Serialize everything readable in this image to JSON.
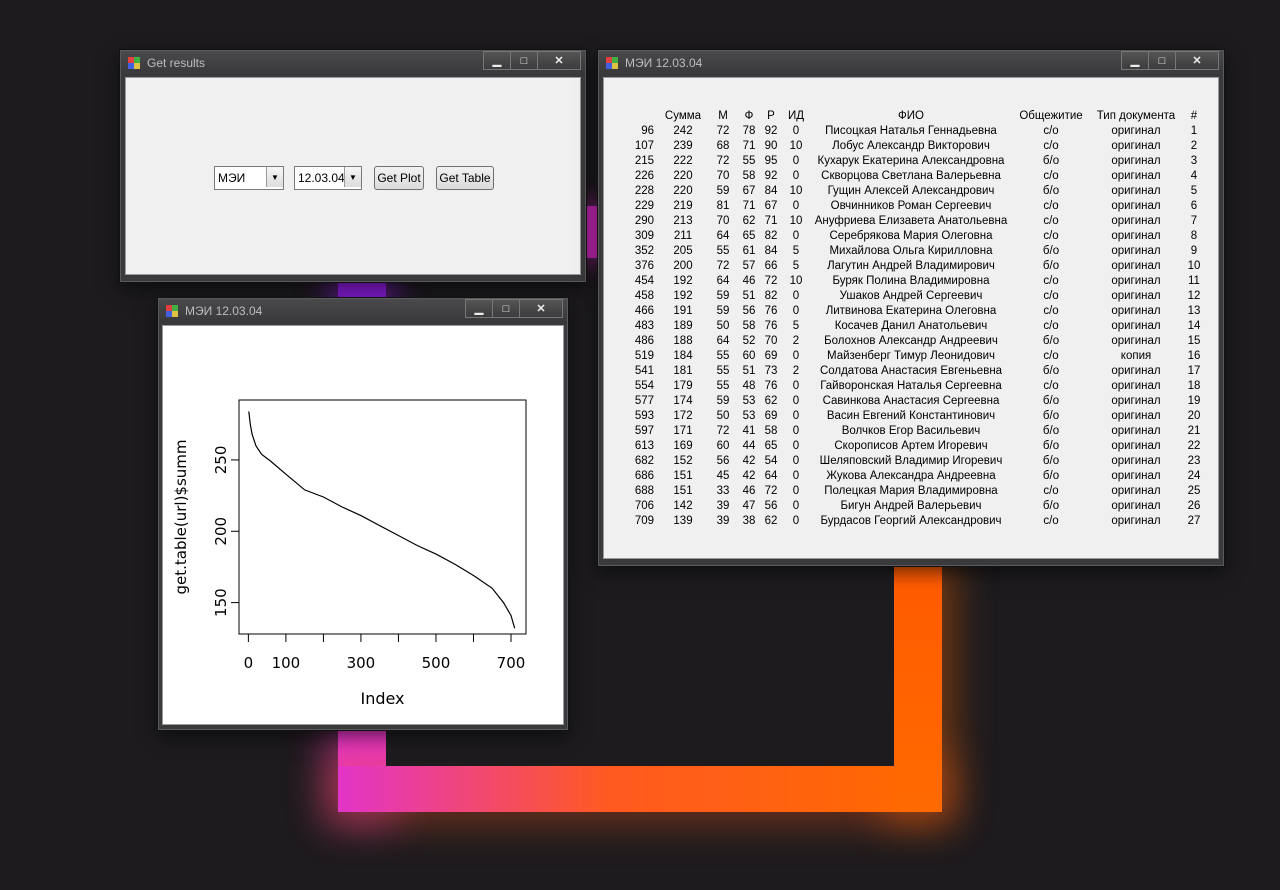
{
  "colors": {
    "desktop_bg": "#1d1b1e",
    "glow_pink": "#e234c8",
    "glow_purple": "#8a1ddb",
    "glow_orange": "#ff6a00"
  },
  "get_results_window": {
    "title": "Get results",
    "university_value": "МЭИ",
    "program_value": "12.03.04",
    "get_plot_label": "Get Plot",
    "get_table_label": "Get Table"
  },
  "plot_window": {
    "title": "МЭИ 12.03.04"
  },
  "table_window": {
    "title": "МЭИ 12.03.04",
    "columns": [
      "",
      "Сумма",
      "М",
      "Ф",
      "Р",
      "ИД",
      "ФИО",
      "Общежитие",
      "Тип документа",
      "#"
    ],
    "rows": [
      [
        "96",
        "242",
        "72",
        "78",
        "92",
        "0",
        "Писоцкая Наталья Геннадьевна",
        "с/о",
        "оригинал",
        "1"
      ],
      [
        "107",
        "239",
        "68",
        "71",
        "90",
        "10",
        "Лобус Александр Викторович",
        "с/о",
        "оригинал",
        "2"
      ],
      [
        "215",
        "222",
        "72",
        "55",
        "95",
        "0",
        "Кухарук Екатерина Александровна",
        "б/о",
        "оригинал",
        "3"
      ],
      [
        "226",
        "220",
        "70",
        "58",
        "92",
        "0",
        "Скворцова Светлана Валерьевна",
        "с/о",
        "оригинал",
        "4"
      ],
      [
        "228",
        "220",
        "59",
        "67",
        "84",
        "10",
        "Гущин Алексей Александрович",
        "б/о",
        "оригинал",
        "5"
      ],
      [
        "229",
        "219",
        "81",
        "71",
        "67",
        "0",
        "Овчинников Роман Сергеевич",
        "с/о",
        "оригинал",
        "6"
      ],
      [
        "290",
        "213",
        "70",
        "62",
        "71",
        "10",
        "Ануфриева Елизавета Анатольевна",
        "с/о",
        "оригинал",
        "7"
      ],
      [
        "309",
        "211",
        "64",
        "65",
        "82",
        "0",
        "Серебрякова Мария Олеговна",
        "с/о",
        "оригинал",
        "8"
      ],
      [
        "352",
        "205",
        "55",
        "61",
        "84",
        "5",
        "Михайлова Ольга Кирилловна",
        "б/о",
        "оригинал",
        "9"
      ],
      [
        "376",
        "200",
        "72",
        "57",
        "66",
        "5",
        "Лагутин Андрей Владимирович",
        "б/о",
        "оригинал",
        "10"
      ],
      [
        "454",
        "192",
        "64",
        "46",
        "72",
        "10",
        "Буряк Полина Владимировна",
        "с/о",
        "оригинал",
        "11"
      ],
      [
        "458",
        "192",
        "59",
        "51",
        "82",
        "0",
        "Ушаков Андрей Сергеевич",
        "с/о",
        "оригинал",
        "12"
      ],
      [
        "466",
        "191",
        "59",
        "56",
        "76",
        "0",
        "Литвинова Екатерина Олеговна",
        "с/о",
        "оригинал",
        "13"
      ],
      [
        "483",
        "189",
        "50",
        "58",
        "76",
        "5",
        "Косачев Данил Анатольевич",
        "с/о",
        "оригинал",
        "14"
      ],
      [
        "486",
        "188",
        "64",
        "52",
        "70",
        "2",
        "Болохнов Александр Андреевич",
        "б/о",
        "оригинал",
        "15"
      ],
      [
        "519",
        "184",
        "55",
        "60",
        "69",
        "0",
        "Майзенберг Тимур Леонидович",
        "с/о",
        "копия",
        "16"
      ],
      [
        "541",
        "181",
        "55",
        "51",
        "73",
        "2",
        "Солдатова Анастасия Евгеньевна",
        "б/о",
        "оригинал",
        "17"
      ],
      [
        "554",
        "179",
        "55",
        "48",
        "76",
        "0",
        "Гайворонская Наталья Сергеевна",
        "с/о",
        "оригинал",
        "18"
      ],
      [
        "577",
        "174",
        "59",
        "53",
        "62",
        "0",
        "Савинкова Анастасия Сергеевна",
        "б/о",
        "оригинал",
        "19"
      ],
      [
        "593",
        "172",
        "50",
        "53",
        "69",
        "0",
        "Васин Евгений Константинович",
        "б/о",
        "оригинал",
        "20"
      ],
      [
        "597",
        "171",
        "72",
        "41",
        "58",
        "0",
        "Волчков Егор Васильевич",
        "б/о",
        "оригинал",
        "21"
      ],
      [
        "613",
        "169",
        "60",
        "44",
        "65",
        "0",
        "Скорописов Артем Игоревич",
        "б/о",
        "оригинал",
        "22"
      ],
      [
        "682",
        "152",
        "56",
        "42",
        "54",
        "0",
        "Шеляповский Владимир Игоревич",
        "б/о",
        "оригинал",
        "23"
      ],
      [
        "686",
        "151",
        "45",
        "42",
        "64",
        "0",
        "Жукова Александра Андреевна",
        "б/о",
        "оригинал",
        "24"
      ],
      [
        "688",
        "151",
        "33",
        "46",
        "72",
        "0",
        "Полецкая Мария Владимировна",
        "с/о",
        "оригинал",
        "25"
      ],
      [
        "706",
        "142",
        "39",
        "47",
        "56",
        "0",
        "Бигун Андрей Валерьевич",
        "б/о",
        "оригинал",
        "26"
      ],
      [
        "709",
        "139",
        "39",
        "38",
        "62",
        "0",
        "Бурдасов Георгий Александрович",
        "с/о",
        "оригинал",
        "27"
      ]
    ]
  },
  "chart_data": {
    "type": "line",
    "xlabel": "Index",
    "ylabel": "get.table(url)$summ",
    "x_ticks": [
      0,
      100,
      300,
      500,
      700
    ],
    "x_minor_ticks": [
      0,
      100,
      200,
      300,
      400,
      500,
      600,
      700
    ],
    "y_ticks": [
      150,
      200,
      250
    ],
    "xlim": [
      -25,
      740
    ],
    "ylim": [
      128,
      292
    ],
    "series": [
      {
        "x": [
          1,
          5,
          10,
          20,
          35,
          60,
          100,
          150,
          200,
          250,
          300,
          350,
          400,
          450,
          500,
          550,
          600,
          650,
          680,
          700,
          710
        ],
        "values": [
          284,
          275,
          268,
          260,
          254,
          249,
          240,
          229,
          224,
          217,
          211,
          204,
          197,
          190,
          184,
          177,
          169,
          160,
          150,
          141,
          132
        ]
      }
    ]
  }
}
